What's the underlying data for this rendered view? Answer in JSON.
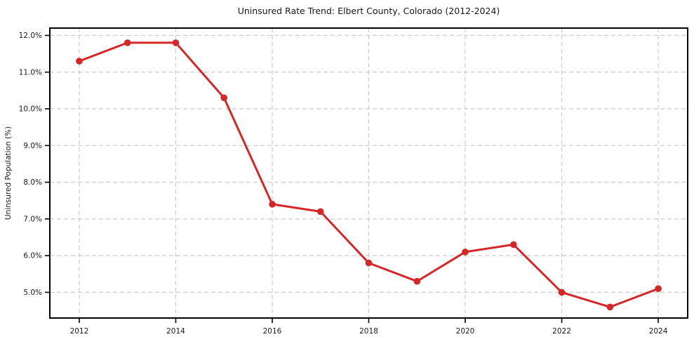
{
  "chart_data": {
    "type": "line",
    "title": "Uninsured Rate Trend: Elbert County, Colorado (2012-2024)",
    "xlabel": "",
    "ylabel": "Uninsured Population (%)",
    "x": [
      2012,
      2013,
      2014,
      2015,
      2016,
      2017,
      2018,
      2019,
      2020,
      2021,
      2022,
      2023,
      2024
    ],
    "values": [
      11.3,
      11.8,
      11.8,
      10.3,
      7.4,
      7.2,
      5.8,
      5.3,
      6.1,
      6.3,
      5.0,
      4.6,
      5.1
    ],
    "x_ticks": [
      {
        "value": 2012,
        "label": "2012"
      },
      {
        "value": 2014,
        "label": "2014"
      },
      {
        "value": 2016,
        "label": "2016"
      },
      {
        "value": 2018,
        "label": "2018"
      },
      {
        "value": 2020,
        "label": "2020"
      },
      {
        "value": 2022,
        "label": "2022"
      },
      {
        "value": 2024,
        "label": "2024"
      }
    ],
    "y_ticks": [
      {
        "value": 5,
        "label": "5.0%"
      },
      {
        "value": 6,
        "label": "6.0%"
      },
      {
        "value": 7,
        "label": "7.0%"
      },
      {
        "value": 8,
        "label": "8.0%"
      },
      {
        "value": 9,
        "label": "9.0%"
      },
      {
        "value": 10,
        "label": "10.0%"
      },
      {
        "value": 11,
        "label": "11.0%"
      },
      {
        "value": 12,
        "label": "12.0%"
      }
    ],
    "xlim": [
      2011.39,
      2024.61
    ],
    "ylim": [
      4.3,
      12.2
    ],
    "grid": true,
    "grid_style": "dashed",
    "legend": "none",
    "line_color": "#d62728",
    "marker": "circle",
    "grid_color": "#cccccc",
    "axis_color": "#000000",
    "text_color": "#1a1a1a",
    "background_color": "#ffffff"
  }
}
